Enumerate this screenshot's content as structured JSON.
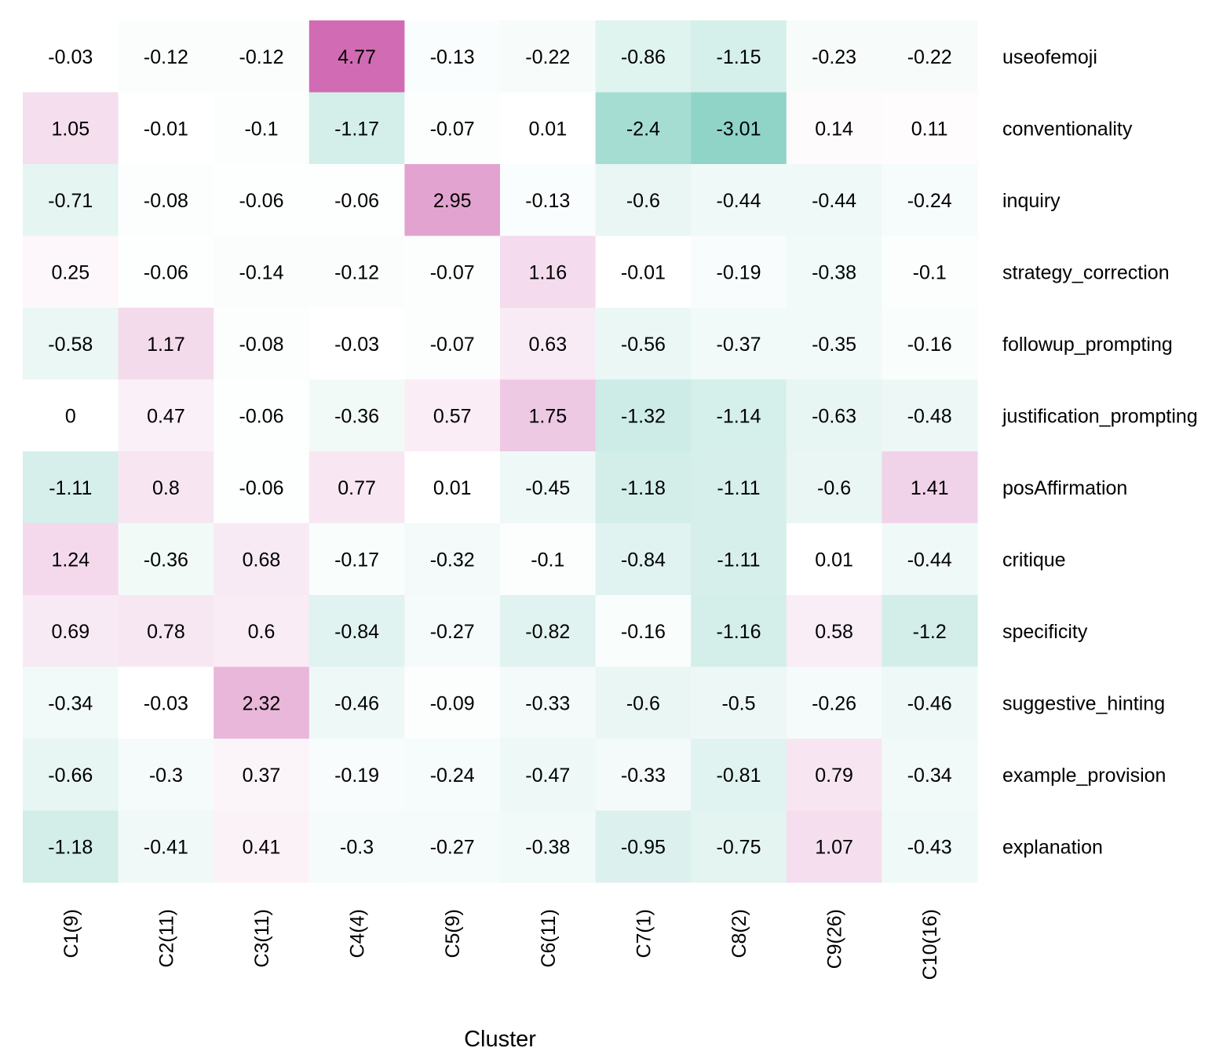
{
  "chart_data": {
    "type": "heatmap",
    "xlabel": "Cluster",
    "ylabel": "",
    "columns": [
      "C1(9)",
      "C2(11)",
      "C3(11)",
      "C4(4)",
      "C5(9)",
      "C6(11)",
      "C7(1)",
      "C8(2)",
      "C9(26)",
      "C10(16)"
    ],
    "rows": [
      "useofemoji",
      "conventionality",
      "inquiry",
      "strategy_correction",
      "followup_prompting",
      "justification_prompting",
      "posAffirmation",
      "critique",
      "specificity",
      "suggestive_hinting",
      "example_provision",
      "explanation"
    ],
    "values": [
      [
        -0.03,
        -0.12,
        -0.12,
        4.77,
        -0.13,
        -0.22,
        -0.86,
        -1.15,
        -0.23,
        -0.22
      ],
      [
        1.05,
        -0.01,
        -0.1,
        -1.17,
        -0.07,
        0.01,
        -2.4,
        -3.01,
        0.14,
        0.11
      ],
      [
        -0.71,
        -0.08,
        -0.06,
        -0.06,
        2.95,
        -0.13,
        -0.6,
        -0.44,
        -0.44,
        -0.24
      ],
      [
        0.25,
        -0.06,
        -0.14,
        -0.12,
        -0.07,
        1.16,
        -0.01,
        -0.19,
        -0.38,
        -0.1
      ],
      [
        -0.58,
        1.17,
        -0.08,
        -0.03,
        -0.07,
        0.63,
        -0.56,
        -0.37,
        -0.35,
        -0.16
      ],
      [
        0,
        0.47,
        -0.06,
        -0.36,
        0.57,
        1.75,
        -1.32,
        -1.14,
        -0.63,
        -0.48
      ],
      [
        -1.11,
        0.8,
        -0.06,
        0.77,
        0.01,
        -0.45,
        -1.18,
        -1.11,
        -0.6,
        1.41
      ],
      [
        1.24,
        -0.36,
        0.68,
        -0.17,
        -0.32,
        -0.1,
        -0.84,
        -1.11,
        0.01,
        -0.44
      ],
      [
        0.69,
        0.78,
        0.6,
        -0.84,
        -0.27,
        -0.82,
        -0.16,
        -1.16,
        0.58,
        -1.2
      ],
      [
        -0.34,
        -0.03,
        2.32,
        -0.46,
        -0.09,
        -0.33,
        -0.6,
        -0.5,
        -0.26,
        -0.46
      ],
      [
        -0.66,
        -0.3,
        0.37,
        -0.19,
        -0.24,
        -0.47,
        -0.33,
        -0.81,
        0.79,
        -0.34
      ],
      [
        -1.18,
        -0.41,
        0.41,
        -0.3,
        -0.27,
        -0.38,
        -0.95,
        -0.75,
        1.07,
        -0.43
      ]
    ],
    "colors": {
      "positive": "#d16bb3",
      "negative": "#90d4c8",
      "neutral": "#ffffff"
    },
    "color_scale_max": 4.77,
    "legend": "none",
    "grid": false
  }
}
